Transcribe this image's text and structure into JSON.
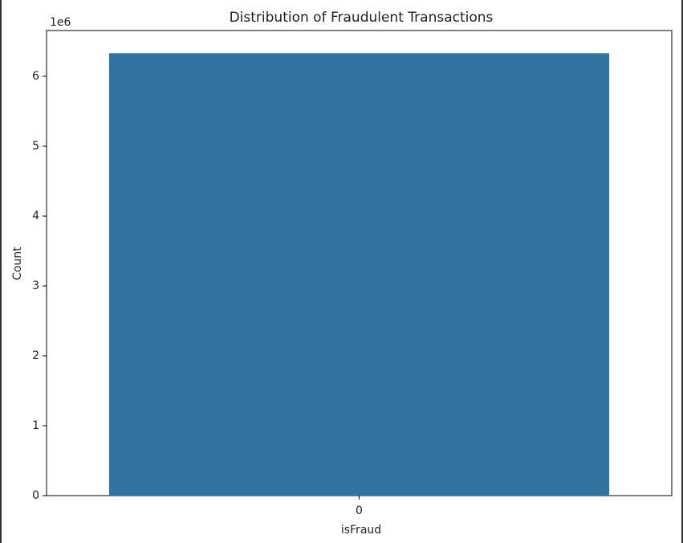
{
  "chart_data": {
    "type": "bar",
    "title": "Distribution of Fraudulent Transactions",
    "x_label": "isFraud",
    "y_label": "Count",
    "y_offset_label": "1e6",
    "categories": [
      "0"
    ],
    "values": [
      6330000
    ],
    "color": "#3274a1",
    "ylim": [
      0,
      6655000
    ],
    "yticks": [
      {
        "value": 0,
        "label": "0"
      },
      {
        "value": 1000000,
        "label": "1"
      },
      {
        "value": 2000000,
        "label": "2"
      },
      {
        "value": 3000000,
        "label": "3"
      },
      {
        "value": 4000000,
        "label": "4"
      },
      {
        "value": 5000000,
        "label": "5"
      },
      {
        "value": 6000000,
        "label": "6"
      }
    ],
    "grid": false
  }
}
